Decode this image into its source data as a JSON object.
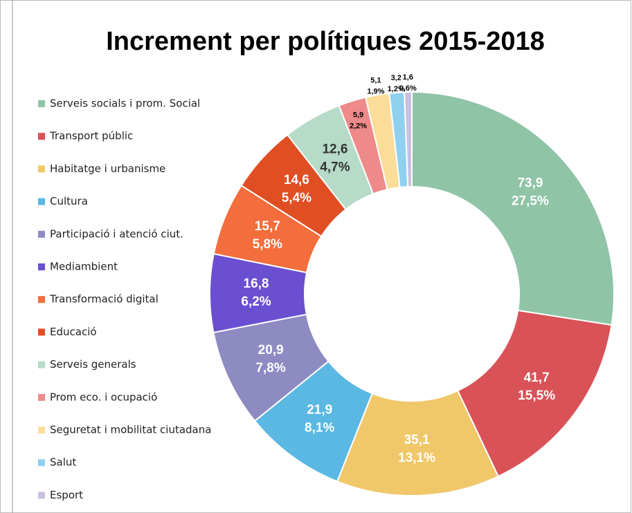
{
  "chart_data": {
    "type": "donut",
    "title": "Increment per polítiques 2015-2018",
    "categories": [
      "Serveis socials i prom. Social",
      "Transport públic",
      "Habitatge i urbanisme",
      "Cultura",
      "Participació i atenció ciut.",
      "Mediambient",
      "Transformació digital",
      "Educació",
      "Serveis generals",
      "Prom eco. i ocupació",
      "Seguretat i mobilitat ciutadana",
      "Salut",
      "Esport"
    ],
    "values": [
      73.9,
      41.7,
      35.1,
      21.9,
      20.9,
      16.8,
      15.7,
      14.6,
      12.6,
      5.9,
      5.1,
      3.2,
      1.6
    ],
    "value_labels": [
      "73,9",
      "41,7",
      "35,1",
      "21,9",
      "20,9",
      "16,8",
      "15,7",
      "14,6",
      "12,6",
      "5,9",
      "5,1",
      "3,2",
      "1,6"
    ],
    "percents": [
      27.5,
      15.5,
      13.1,
      8.1,
      7.8,
      6.2,
      5.8,
      5.4,
      4.7,
      2.2,
      1.9,
      1.2,
      0.6
    ],
    "percent_labels": [
      "27,5%",
      "15,5%",
      "13,1%",
      "8,1%",
      "7,8%",
      "6,2%",
      "5,8%",
      "5,4%",
      "4,7%",
      "2,2%",
      "1,9%",
      "1,2%",
      "0,6%"
    ],
    "colors": [
      "#8fc4a6",
      "#d95257",
      "#f0c86a",
      "#5ab8e2",
      "#8e8bc3",
      "#6a4fd0",
      "#f46d3c",
      "#e04e24",
      "#b6dbc8",
      "#ee8a8a",
      "#fbdd9a",
      "#8fd0ef",
      "#cbbfe0"
    ]
  }
}
